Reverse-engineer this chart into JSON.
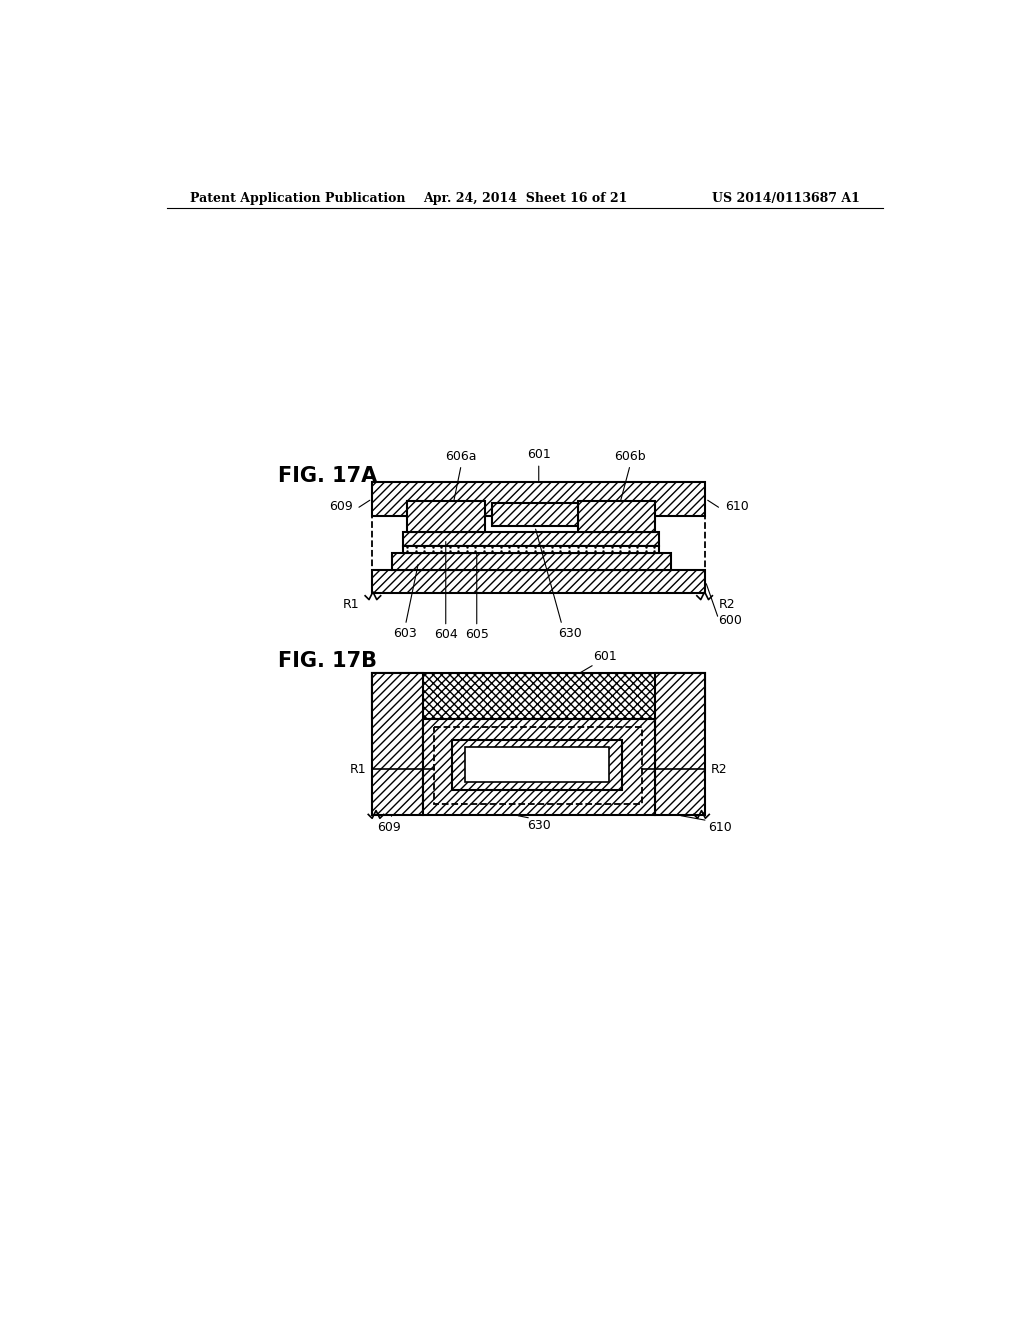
{
  "header_left": "Patent Application Publication",
  "header_center": "Apr. 24, 2014  Sheet 16 of 21",
  "header_right": "US 2014/0113687 A1",
  "fig17a_label": "FIG. 17A",
  "fig17b_label": "FIG. 17B",
  "background": "#ffffff",
  "line_color": "#000000"
}
